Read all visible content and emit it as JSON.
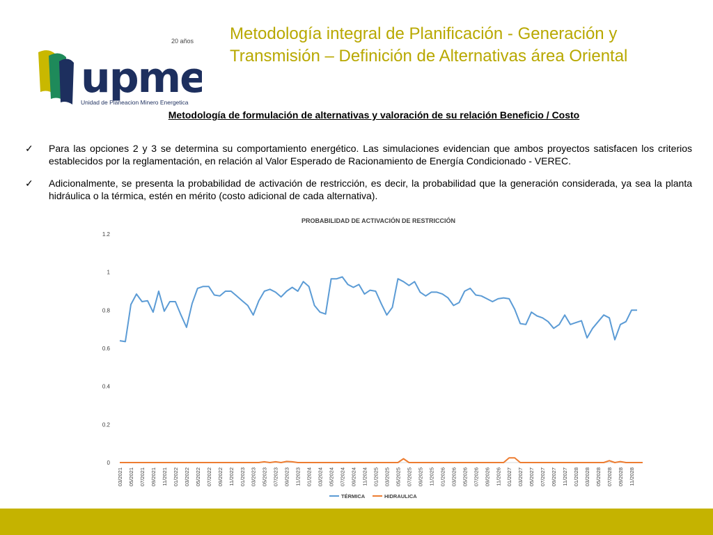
{
  "header": {
    "title": "Metodología integral de Planificación - Generación y Transmisión – Definición de Alternativas área Oriental",
    "logo": {
      "years": "20 años",
      "wordmark": "upme",
      "org_name": "Unidad de Planeacion Minero Energetica"
    }
  },
  "section": {
    "subtitle": "Metodología de formulación de alternativas y valoración de su relación Beneficio / Costo",
    "bullets": [
      {
        "icon": "check-icon",
        "text": "Para las opciones 2 y 3 se determina su comportamiento energético. Las simulaciones evidencian que ambos proyectos satisfacen los criterios establecidos por la reglamentación, en relación al Valor Esperado de Racionamiento de Energía Condicionado - VEREC."
      },
      {
        "icon": "check-icon",
        "text": "Adicionalmente, se presenta la probabilidad de activación de restricción, es decir, la probabilidad que la generación considerada, ya sea la planta hidráulica o la térmica, estén en mérito (costo adicional de cada alternativa)."
      }
    ]
  },
  "colors": {
    "title": "#b8a800",
    "footer": "#c5b300",
    "termica": "#5b9bd5",
    "hidraulica": "#ed7d31",
    "logo_navy": "#1d2f5e",
    "logo_green": "#1e8a5a",
    "logo_gold": "#c9b800"
  },
  "chart_data": {
    "type": "line",
    "title": "PROBABILIDAD DE ACTIVACIÓN DE RESTRICCIÓN",
    "ylim": [
      0,
      1.2
    ],
    "yticks": [
      "0",
      "0.2",
      "0.4",
      "0.6",
      "0.8",
      "1",
      "1.2"
    ],
    "grid": false,
    "legend_position": "bottom",
    "x_tick_labels": [
      "03/2021",
      "05/2021",
      "07/2021",
      "09/2021",
      "11/2021",
      "01/2022",
      "03/2022",
      "05/2022",
      "07/2022",
      "09/2022",
      "11/2022",
      "01/2023",
      "03/2023",
      "05/2023",
      "07/2023",
      "09/2023",
      "11/2023",
      "01/2024",
      "03/2024",
      "05/2024",
      "07/2024",
      "09/2024",
      "11/2024",
      "01/2025",
      "03/2025",
      "05/2025",
      "07/2025",
      "09/2025",
      "11/2025",
      "01/2026",
      "03/2026",
      "05/2026",
      "07/2026",
      "09/2026",
      "11/2026",
      "01/2027",
      "03/2027",
      "05/2027",
      "07/2027",
      "09/2027",
      "11/2027",
      "01/2028",
      "03/2028",
      "05/2028",
      "07/2028",
      "09/2028",
      "11/2028"
    ],
    "x_start": "03/2021",
    "x_step": "1 month",
    "series": [
      {
        "name": "TÉRMICA",
        "values": [
          0.64,
          0.635,
          0.83,
          0.885,
          0.845,
          0.85,
          0.79,
          0.9,
          0.795,
          0.845,
          0.845,
          0.775,
          0.71,
          0.835,
          0.915,
          0.925,
          0.925,
          0.88,
          0.875,
          0.9,
          0.9,
          0.875,
          0.85,
          0.825,
          0.775,
          0.85,
          0.9,
          0.91,
          0.895,
          0.87,
          0.9,
          0.92,
          0.9,
          0.95,
          0.925,
          0.825,
          0.79,
          0.78,
          0.965,
          0.965,
          0.975,
          0.935,
          0.92,
          0.935,
          0.885,
          0.905,
          0.9,
          0.835,
          0.775,
          0.815,
          0.965,
          0.95,
          0.93,
          0.95,
          0.895,
          0.875,
          0.895,
          0.895,
          0.885,
          0.865,
          0.825,
          0.84,
          0.9,
          0.915,
          0.88,
          0.875,
          0.86,
          0.845,
          0.86,
          0.865,
          0.86,
          0.805,
          0.73,
          0.725,
          0.79,
          0.77,
          0.76,
          0.74,
          0.705,
          0.725,
          0.775,
          0.725,
          0.735,
          0.745,
          0.655,
          0.705,
          0.74,
          0.775,
          0.76,
          0.645,
          0.725,
          0.74,
          0.8,
          0.8
        ]
      },
      {
        "name": "HIDRAULICA",
        "values": [
          0,
          0,
          0,
          0,
          0,
          0,
          0,
          0,
          0,
          0,
          0,
          0,
          0,
          0,
          0,
          0,
          0,
          0,
          0,
          0,
          0,
          0,
          0,
          0,
          0,
          0,
          0.004,
          0,
          0.004,
          0,
          0.006,
          0.004,
          0,
          0,
          0,
          0,
          0,
          0,
          0,
          0,
          0,
          0,
          0,
          0,
          0,
          0,
          0,
          0,
          0,
          0,
          0,
          0.02,
          0,
          0,
          0,
          0,
          0,
          0,
          0,
          0,
          0,
          0,
          0,
          0,
          0,
          0,
          0,
          0,
          0,
          0,
          0.025,
          0.025,
          0,
          0,
          0,
          0,
          0,
          0,
          0,
          0,
          0,
          0,
          0,
          0,
          0,
          0,
          0,
          0,
          0.01,
          0,
          0.005,
          0,
          0,
          0,
          0
        ]
      }
    ]
  }
}
